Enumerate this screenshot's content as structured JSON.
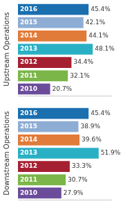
{
  "chart_data": [
    {
      "type": "bar",
      "orientation": "horizontal",
      "ylabel": "Upstream Operations",
      "categories": [
        "2016",
        "2015",
        "2014",
        "2013",
        "2012",
        "2011",
        "2010"
      ],
      "values": [
        45.4,
        42.1,
        44.1,
        48.1,
        34.4,
        32.1,
        20.7
      ],
      "value_labels": [
        "45.4%",
        "42.1%",
        "44.1%",
        "48.1%",
        "34.4%",
        "32.1%",
        "20.7%"
      ],
      "colors": [
        "#1a6faf",
        "#8eadd4",
        "#e07b39",
        "#2ab0c5",
        "#a52030",
        "#7ab648",
        "#6b4c9a"
      ],
      "xlim": [
        0,
        60
      ],
      "xticks": [],
      "grid": false,
      "data_labels": true,
      "tick_labels": false
    },
    {
      "type": "bar",
      "orientation": "horizontal",
      "ylabel": "Downstream Operations",
      "categories": [
        "2016",
        "2015",
        "2014",
        "2013",
        "2012",
        "2011",
        "2010"
      ],
      "values": [
        45.4,
        38.9,
        39.6,
        51.9,
        33.3,
        30.7,
        27.9
      ],
      "value_labels": [
        "45.4%",
        "38.9%",
        "39.6%",
        "51.9%",
        "33.3%",
        "30.7%",
        "27.9%"
      ],
      "colors": [
        "#1a6faf",
        "#8eadd4",
        "#e07b39",
        "#2ab0c5",
        "#a52030",
        "#7ab648",
        "#6b4c9a"
      ],
      "xlim": [
        0,
        60
      ],
      "xticks": [],
      "grid": false,
      "data_labels": true,
      "tick_labels": false
    }
  ]
}
